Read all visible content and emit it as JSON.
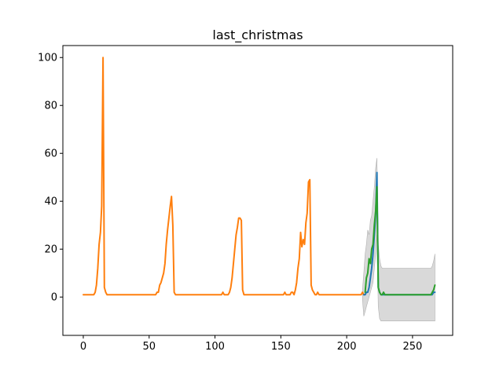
{
  "chart_data": {
    "type": "line",
    "title": "last_christmas",
    "xlabel": "",
    "ylabel": "",
    "xlim": [
      -15.5,
      280.5
    ],
    "ylim": [
      -16,
      105
    ],
    "x_ticks": [
      0,
      50,
      100,
      150,
      200,
      250
    ],
    "y_ticks": [
      0,
      20,
      40,
      60,
      80,
      100
    ],
    "grid": false,
    "legend": "none",
    "colors": {
      "orange": "#ff7f0e",
      "blue": "#1f77b4",
      "green": "#2ca02c",
      "band": "#d9d9d9",
      "band_edge": "#b0b0b0"
    },
    "series": [
      {
        "color": "#ff7f0e",
        "points": [
          [
            0,
            1
          ],
          [
            8,
            1
          ],
          [
            9,
            2
          ],
          [
            10,
            5
          ],
          [
            11,
            12
          ],
          [
            12,
            22
          ],
          [
            13,
            27
          ],
          [
            14,
            38
          ],
          [
            15,
            100
          ],
          [
            16,
            4
          ],
          [
            17,
            2
          ],
          [
            18,
            1
          ],
          [
            55,
            1
          ],
          [
            56,
            2
          ],
          [
            57,
            2
          ],
          [
            58,
            5
          ],
          [
            59,
            6
          ],
          [
            60,
            8
          ],
          [
            61,
            10
          ],
          [
            62,
            14
          ],
          [
            63,
            22
          ],
          [
            64,
            28
          ],
          [
            65,
            33
          ],
          [
            66,
            38
          ],
          [
            67,
            42
          ],
          [
            68,
            30
          ],
          [
            69,
            2
          ],
          [
            70,
            1
          ],
          [
            105,
            1
          ],
          [
            106,
            2
          ],
          [
            107,
            1
          ],
          [
            110,
            1
          ],
          [
            111,
            2
          ],
          [
            112,
            4
          ],
          [
            113,
            8
          ],
          [
            114,
            14
          ],
          [
            115,
            20
          ],
          [
            116,
            26
          ],
          [
            117,
            29
          ],
          [
            118,
            33
          ],
          [
            119,
            33
          ],
          [
            120,
            32
          ],
          [
            121,
            3
          ],
          [
            122,
            1
          ],
          [
            152,
            1
          ],
          [
            153,
            2
          ],
          [
            154,
            1
          ],
          [
            157,
            1
          ],
          [
            158,
            2
          ],
          [
            159,
            2
          ],
          [
            160,
            1
          ],
          [
            161,
            3
          ],
          [
            162,
            6
          ],
          [
            163,
            12
          ],
          [
            164,
            16
          ],
          [
            165,
            27
          ],
          [
            166,
            21
          ],
          [
            167,
            24
          ],
          [
            168,
            22
          ],
          [
            169,
            31
          ],
          [
            170,
            35
          ],
          [
            171,
            48
          ],
          [
            172,
            49
          ],
          [
            173,
            5
          ],
          [
            174,
            3
          ],
          [
            175,
            2
          ],
          [
            176,
            1
          ],
          [
            177,
            1
          ],
          [
            178,
            2
          ],
          [
            179,
            1
          ],
          [
            211,
            1
          ],
          [
            212,
            2
          ],
          [
            213,
            1
          ]
        ]
      },
      {
        "color": "#1f77b4",
        "points": [
          [
            213,
            1
          ],
          [
            214,
            1
          ],
          [
            215,
            2
          ],
          [
            216,
            2
          ],
          [
            217,
            4
          ],
          [
            218,
            8
          ],
          [
            219,
            12
          ],
          [
            220,
            18
          ],
          [
            221,
            26
          ],
          [
            222,
            35
          ],
          [
            223,
            52
          ],
          [
            224,
            4
          ],
          [
            225,
            2
          ],
          [
            226,
            1
          ],
          [
            227,
            1
          ],
          [
            228,
            1
          ],
          [
            229,
            1
          ],
          [
            230,
            1
          ],
          [
            240,
            1
          ],
          [
            250,
            1
          ],
          [
            260,
            1
          ],
          [
            265,
            1
          ],
          [
            266,
            2
          ],
          [
            267,
            2
          ]
        ]
      },
      {
        "color": "#2ca02c",
        "points": [
          [
            214,
            2
          ],
          [
            215,
            8
          ],
          [
            216,
            10
          ],
          [
            217,
            16
          ],
          [
            218,
            14
          ],
          [
            219,
            20
          ],
          [
            220,
            22
          ],
          [
            221,
            30
          ],
          [
            222,
            36
          ],
          [
            223,
            46
          ],
          [
            224,
            4
          ],
          [
            225,
            2
          ],
          [
            226,
            1
          ],
          [
            227,
            1
          ],
          [
            228,
            2
          ],
          [
            229,
            1
          ],
          [
            230,
            1
          ],
          [
            240,
            1
          ],
          [
            250,
            1
          ],
          [
            260,
            1
          ],
          [
            264,
            1
          ],
          [
            265,
            2
          ],
          [
            266,
            3
          ],
          [
            267,
            5
          ]
        ]
      }
    ],
    "band": {
      "x": [
        212,
        213,
        214,
        215,
        216,
        217,
        218,
        219,
        220,
        221,
        222,
        223,
        224,
        225,
        226,
        227,
        230,
        240,
        250,
        260,
        264,
        265,
        266,
        267
      ],
      "upper": [
        3,
        10,
        18,
        22,
        28,
        26,
        32,
        34,
        40,
        46,
        54,
        58,
        22,
        16,
        13,
        12,
        12,
        12,
        12,
        12,
        12,
        13,
        15,
        18
      ],
      "lower": [
        -1,
        -8,
        -6,
        -4,
        -2,
        0,
        2,
        4,
        6,
        12,
        18,
        26,
        -4,
        -9,
        -10,
        -10,
        -10,
        -10,
        -10,
        -10,
        -10,
        -10,
        -10,
        -10
      ]
    }
  }
}
